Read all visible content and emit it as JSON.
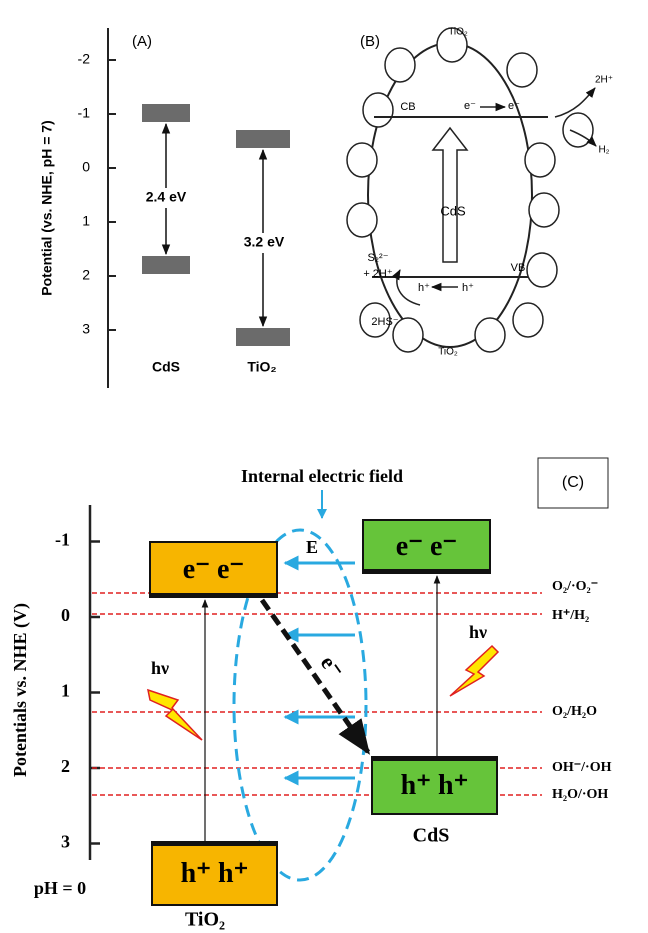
{
  "panel_a": {
    "label": "(A)",
    "axis_label": "Potential (vs. NHE, pH = 7)",
    "ticks": [
      -2,
      -1,
      0,
      1,
      2,
      3
    ],
    "gaps": [
      "2.4 eV",
      "3.2 eV"
    ],
    "materials": [
      "CdS",
      "TiO₂"
    ]
  },
  "panel_b": {
    "label": "(B)",
    "tio2_top": "TiO₂",
    "tio2_bottom": "TiO₂",
    "cb": "CB",
    "vb": "VB",
    "electrons": [
      "e⁻",
      "e⁻"
    ],
    "holes": [
      "h⁺",
      "h⁺"
    ],
    "proton": "2H⁺",
    "hydrogen": "H₂",
    "core": "CdS",
    "sulfide": [
      "S₂²⁻",
      "+ 2H⁺"
    ],
    "bisulfide": "2HS⁻"
  },
  "panel_c": {
    "label": "(C)",
    "field": "Internal electric field",
    "field_symbol": "E",
    "axis_label": "Potentials vs. NHE (V)",
    "ticks": [
      -1,
      0,
      1,
      2,
      3
    ],
    "tio2_cb": "e⁻  e⁻",
    "cds_cb": "e⁻ e⁻",
    "cds_vb": "h⁺ h⁺",
    "tio2_vb": "h⁺  h⁺",
    "transfer": "e⁻",
    "light": [
      "hν",
      "hν"
    ],
    "couples": [
      "O₂/·O₂⁻",
      "H⁺/H₂",
      "O₂/H₂O",
      "OH⁻/·OH",
      "H₂O/·OH"
    ],
    "materials": [
      "TiO₂",
      "CdS"
    ],
    "ph": "pH = 0"
  }
}
